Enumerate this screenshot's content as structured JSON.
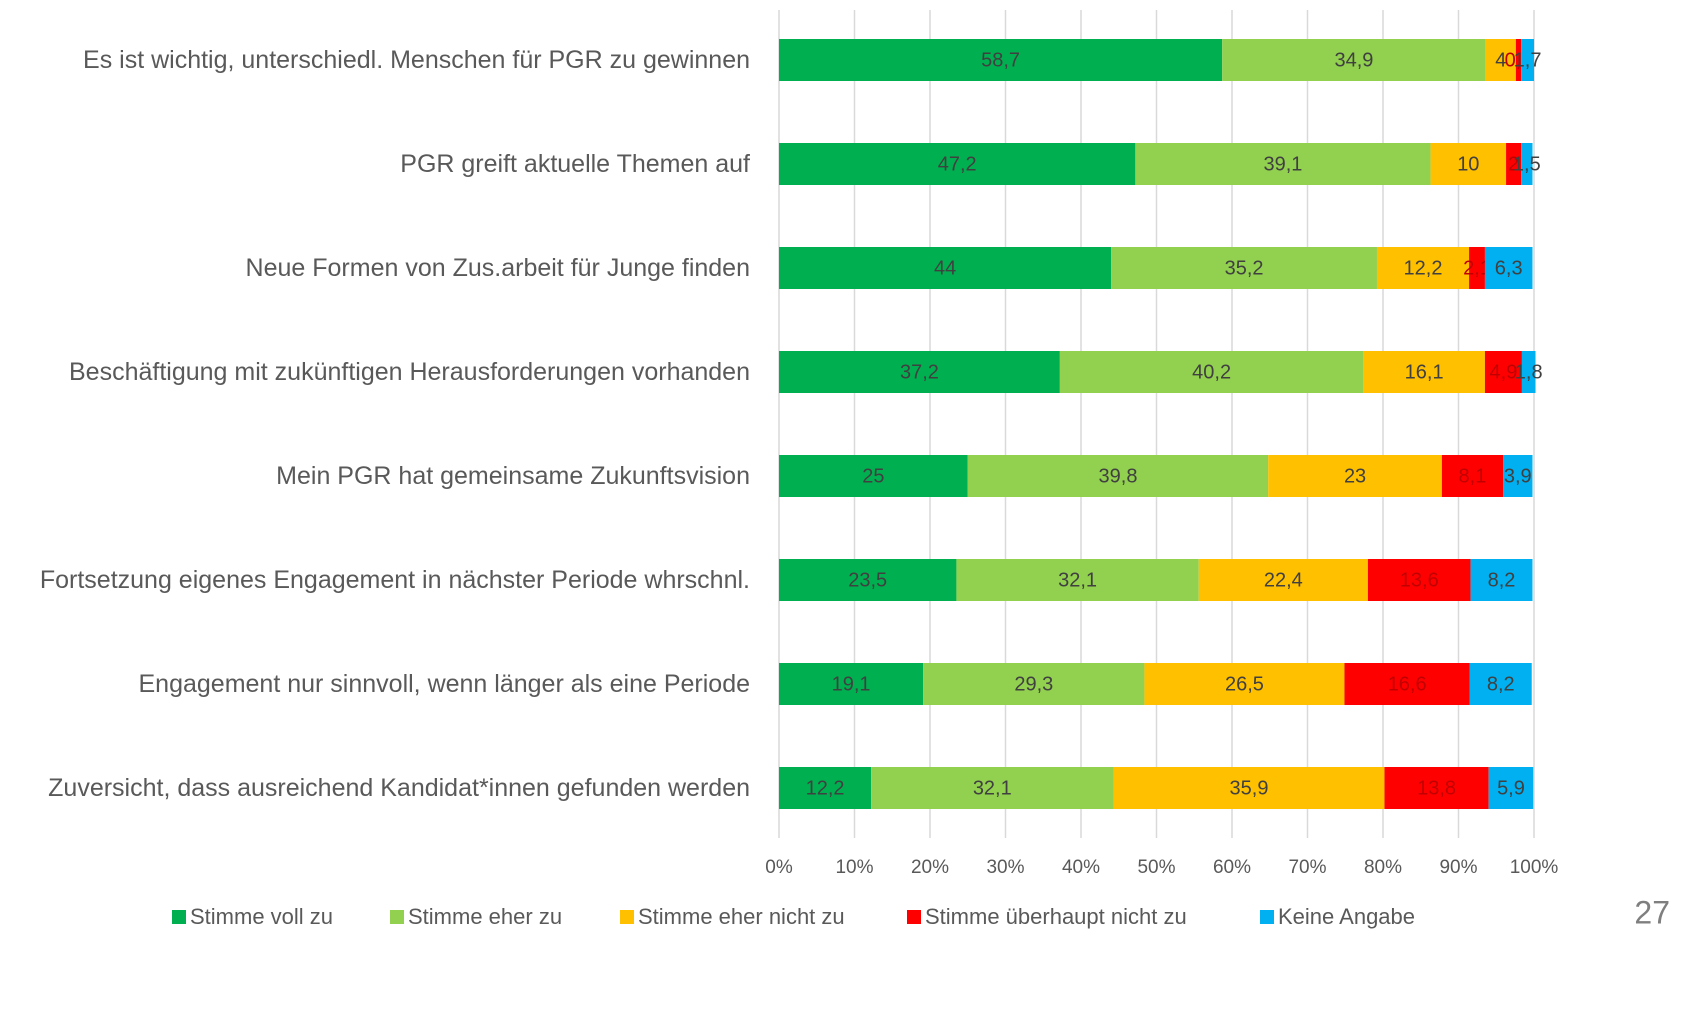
{
  "chart_data": {
    "type": "stacked-bar-horizontal",
    "categories": [
      "Es ist wichtig, unterschiedl. Menschen für PGR zu gewinnen",
      "PGR greift aktuelle Themen auf",
      "Neue Formen von Zus.arbeit für Junge finden",
      "Beschäftigung mit zukünftigen Herausforderungen vorhanden",
      "Mein PGR hat gemeinsame Zukunftsvision",
      "Fortsetzung eigenes Engagement in nächster Periode whrschnl.",
      "Engagement nur sinnvoll, wenn länger als eine Periode",
      "Zuversicht, dass ausreichend Kandidat*innen gefunden werden"
    ],
    "series": [
      {
        "name": "Stimme voll zu",
        "color": "#00b050",
        "values": [
          58.7,
          47.2,
          44,
          37.2,
          25,
          23.5,
          19.1,
          12.2
        ],
        "value_labels": [
          "58,7",
          "47,2",
          "44",
          "37,2",
          "25",
          "23,5",
          "19,1",
          "12,2"
        ]
      },
      {
        "name": "Stimme eher zu",
        "color": "#92d050",
        "values": [
          34.9,
          39.1,
          35.2,
          40.2,
          39.8,
          32.1,
          29.3,
          32.1
        ],
        "value_labels": [
          "34,9",
          "39,1",
          "35,2",
          "40,2",
          "39,8",
          "32,1",
          "29,3",
          "32,1"
        ]
      },
      {
        "name": "Stimme eher nicht zu",
        "color": "#ffc000",
        "values": [
          4,
          10,
          12.2,
          16.1,
          23,
          22.4,
          26.5,
          35.9
        ],
        "value_labels": [
          "4",
          "10",
          "12,2",
          "16,1",
          "23",
          "22,4",
          "26,5",
          "35,9"
        ]
      },
      {
        "name": "Stimme überhaupt nicht zu",
        "color": "#ff0000",
        "values": [
          0.7,
          2,
          2.1,
          4.9,
          8.1,
          13.6,
          16.6,
          13.8
        ],
        "value_labels": [
          "0,7",
          "2",
          "2,1",
          "4,9",
          "8,1",
          "13,6",
          "16,6",
          "13,8"
        ]
      },
      {
        "name": "Keine Angabe",
        "color": "#00b0f0",
        "values": [
          1.7,
          1.5,
          6.3,
          1.8,
          3.9,
          8.2,
          8.2,
          5.9
        ],
        "value_labels": [
          "1,7",
          "1,5",
          "6,3",
          "1,8",
          "3,9",
          "8,2",
          "8,2",
          "5,9"
        ]
      }
    ],
    "xlim": [
      0,
      100
    ],
    "xticks": [
      {
        "value": 0,
        "label": "0%"
      },
      {
        "value": 10,
        "label": "10%"
      },
      {
        "value": 20,
        "label": "20%"
      },
      {
        "value": 30,
        "label": "30%"
      },
      {
        "value": 40,
        "label": "40%"
      },
      {
        "value": 50,
        "label": "50%"
      },
      {
        "value": 60,
        "label": "60%"
      },
      {
        "value": 70,
        "label": "70%"
      },
      {
        "value": 80,
        "label": "80%"
      },
      {
        "value": 90,
        "label": "90%"
      },
      {
        "value": 100,
        "label": "100%"
      }
    ],
    "grid": true,
    "legend": "bottom"
  },
  "page_number": "27"
}
